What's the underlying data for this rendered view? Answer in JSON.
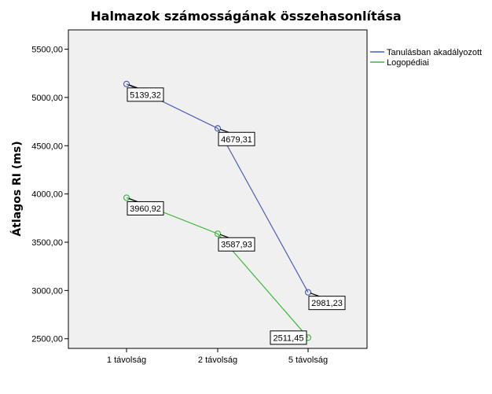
{
  "chart_data": {
    "type": "line",
    "title": "Halmazok számosságának összehasonlítása",
    "ylabel": "Átlagos RI (ms)",
    "xlabel": "",
    "categories": [
      "1 távolság",
      "2 távolság",
      "5 távolság"
    ],
    "ylim": [
      2400,
      5700
    ],
    "yticks": [
      2500,
      3000,
      3500,
      4000,
      4500,
      5000,
      5500
    ],
    "ytick_labels": [
      "2500,00",
      "3000,00",
      "3500,00",
      "4000,00",
      "4500,00",
      "5000,00",
      "5500,00"
    ],
    "grid": false,
    "legend_position": "right",
    "series": [
      {
        "name": "Tanulásban akadályozott",
        "color": "#4a5fb5",
        "values": [
          5139.32,
          4679.31,
          2981.23
        ],
        "value_labels": [
          "5139,32",
          "4679,31",
          "2981,23"
        ]
      },
      {
        "name": "Logopédiai",
        "color": "#3cb83c",
        "values": [
          3960.92,
          3587.93,
          2511.45
        ],
        "value_labels": [
          "3960,92",
          "3587,93",
          "2511,45"
        ]
      }
    ]
  }
}
